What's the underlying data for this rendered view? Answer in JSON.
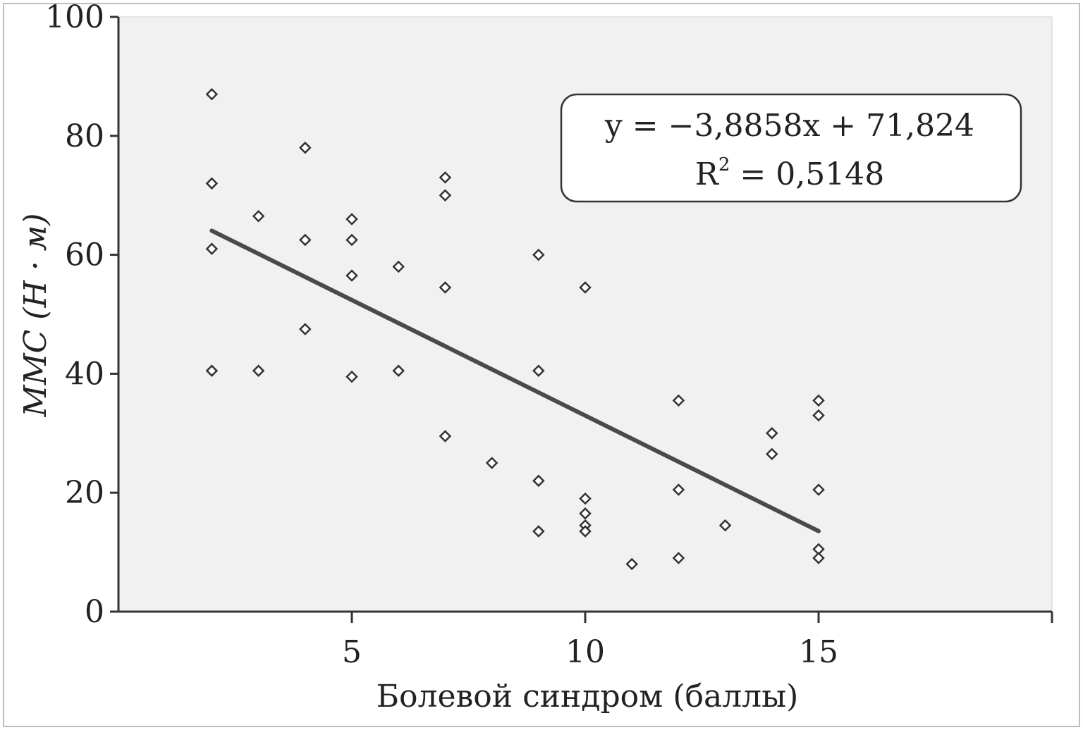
{
  "chart_data": {
    "type": "scatter",
    "xlabel": "Болевой синдром (баллы)",
    "ylabel": "ММС (Н · м)",
    "xlim": [
      0,
      20
    ],
    "ylim": [
      0,
      100
    ],
    "x_ticks": [
      5,
      10,
      15
    ],
    "x_tick_labels": [
      "5",
      "10",
      "15"
    ],
    "y_ticks": [
      0,
      20,
      40,
      60,
      80,
      100
    ],
    "y_tick_labels": [
      "0",
      "20",
      "40",
      "60",
      "80",
      "100"
    ],
    "grid": false,
    "marker": "diamond",
    "points": [
      {
        "x": 2,
        "y": 87
      },
      {
        "x": 2,
        "y": 72
      },
      {
        "x": 2,
        "y": 61
      },
      {
        "x": 2,
        "y": 40.5
      },
      {
        "x": 3,
        "y": 66.5
      },
      {
        "x": 3,
        "y": 40.5
      },
      {
        "x": 4,
        "y": 78
      },
      {
        "x": 4,
        "y": 62.5
      },
      {
        "x": 4,
        "y": 47.5
      },
      {
        "x": 5,
        "y": 66
      },
      {
        "x": 5,
        "y": 62.5
      },
      {
        "x": 5,
        "y": 56.5
      },
      {
        "x": 5,
        "y": 39.5
      },
      {
        "x": 6,
        "y": 58
      },
      {
        "x": 6,
        "y": 40.5
      },
      {
        "x": 7,
        "y": 73
      },
      {
        "x": 7,
        "y": 70
      },
      {
        "x": 7,
        "y": 54.5
      },
      {
        "x": 7,
        "y": 29.5
      },
      {
        "x": 8,
        "y": 25
      },
      {
        "x": 9,
        "y": 60
      },
      {
        "x": 9,
        "y": 40.5
      },
      {
        "x": 9,
        "y": 22
      },
      {
        "x": 9,
        "y": 13.5
      },
      {
        "x": 10,
        "y": 54.5
      },
      {
        "x": 10,
        "y": 19
      },
      {
        "x": 10,
        "y": 16.5
      },
      {
        "x": 10,
        "y": 14.5
      },
      {
        "x": 10,
        "y": 13.5
      },
      {
        "x": 11,
        "y": 8
      },
      {
        "x": 12,
        "y": 35.5
      },
      {
        "x": 12,
        "y": 20.5
      },
      {
        "x": 12,
        "y": 9
      },
      {
        "x": 13,
        "y": 14.5
      },
      {
        "x": 14,
        "y": 30
      },
      {
        "x": 14,
        "y": 26.5
      },
      {
        "x": 15,
        "y": 35.5
      },
      {
        "x": 15,
        "y": 33
      },
      {
        "x": 15,
        "y": 20.5
      },
      {
        "x": 15,
        "y": 10.5
      },
      {
        "x": 15,
        "y": 9
      }
    ],
    "trendline": {
      "slope": -3.8858,
      "intercept": 71.824,
      "x_range": [
        2,
        15
      ]
    },
    "annotation": {
      "equation": "y = −3,8858x + 71,824",
      "r2_label": "R",
      "r2_sup": "2",
      "r2_value": " = 0,5148"
    },
    "colors": {
      "plot_background": "#f1f1f1",
      "axis": "#333333",
      "marker_stroke": "#333333",
      "trendline": "#4a4a4a",
      "annotation_fill": "#ffffff"
    }
  }
}
